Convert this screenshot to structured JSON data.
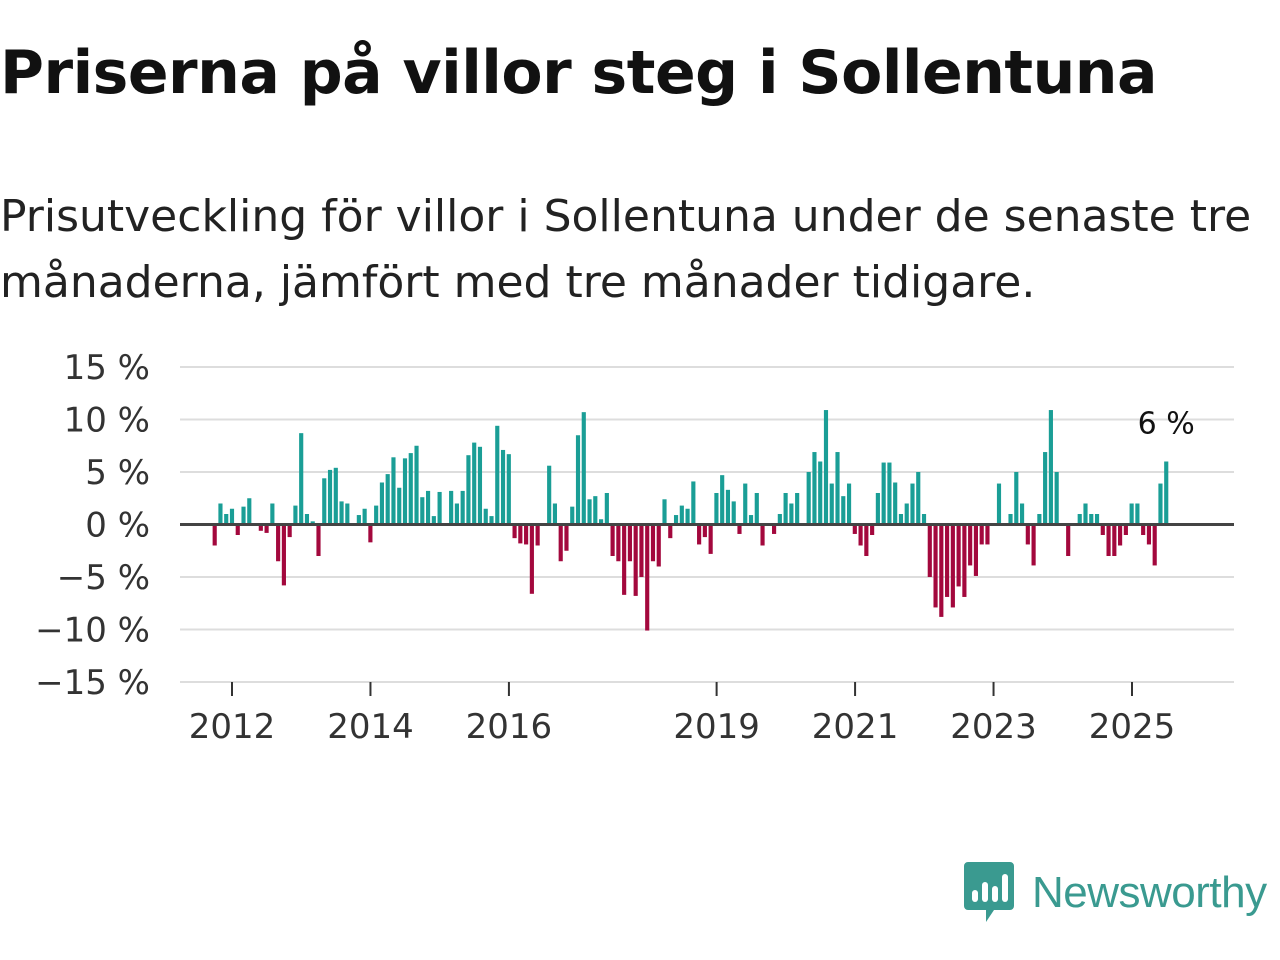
{
  "title": "Priserna på villor steg i Sollentuna",
  "subtitle": "Prisutveckling för villor i Sollentuna under de senaste tre månaderna, jämfört med tre månader tidigare.",
  "brand": "Newsworthy",
  "colors": {
    "positive": "#1a9e96",
    "negative": "#a3083d",
    "grid": "#dddddd",
    "zero_line": "#444444",
    "brand": "#3a9a90"
  },
  "chart_data": {
    "type": "bar",
    "title": "Priserna på villor steg i Sollentuna",
    "ylabel": "",
    "xlabel": "",
    "ylim": [
      -15,
      15
    ],
    "yticks": [
      15,
      10,
      5,
      0,
      -5,
      -10,
      -15
    ],
    "ytick_labels": [
      "15 %",
      "10 %",
      "5 %",
      "0 %",
      "−5 %",
      "−10 %",
      "−15 %"
    ],
    "x_start": 2011.75,
    "x_step": 0.0833,
    "xticks": [
      2012,
      2014,
      2016,
      2019,
      2021,
      2023,
      2025
    ],
    "xtick_labels": [
      "2012",
      "2014",
      "2016",
      "2019",
      "2021",
      "2023",
      "2025"
    ],
    "last_value_label": "6 %",
    "values": [
      -2,
      2,
      1,
      1.5,
      -1,
      1.7,
      2.5,
      0,
      -0.6,
      -0.8,
      2,
      -3.5,
      -5.8,
      -1.2,
      1.8,
      8.7,
      1,
      0.3,
      -3,
      4.4,
      5.2,
      5.4,
      2.2,
      2,
      0,
      0.9,
      1.5,
      -1.7,
      1.8,
      4,
      4.8,
      6.4,
      3.5,
      6.3,
      6.8,
      7.5,
      2.6,
      3.2,
      0.8,
      3.1,
      0,
      3.2,
      2,
      3.2,
      6.6,
      7.8,
      7.4,
      1.5,
      0.8,
      9.4,
      7.1,
      6.7,
      -1.3,
      -1.8,
      -1.9,
      -6.6,
      -2,
      0,
      5.6,
      2,
      -3.5,
      -2.5,
      1.7,
      8.5,
      10.7,
      2.4,
      2.7,
      0.5,
      3,
      -3,
      -3.5,
      -6.7,
      -3.5,
      -6.8,
      -5,
      -10.1,
      -3.5,
      -4,
      2.4,
      -1.3,
      0.9,
      1.8,
      1.5,
      4.1,
      -1.9,
      -1.2,
      -2.8,
      3,
      4.7,
      3.3,
      2.2,
      -0.9,
      3.9,
      0.9,
      3,
      -2,
      0,
      -0.9,
      1,
      3,
      2,
      3,
      0,
      5,
      6.9,
      6,
      10.9,
      3.9,
      6.9,
      2.7,
      3.9,
      -0.9,
      -2,
      -3,
      -1,
      3,
      5.9,
      5.9,
      4,
      1,
      2,
      3.9,
      5,
      1,
      -5,
      -7.9,
      -8.8,
      -6.9,
      -7.9,
      -5.9,
      -6.9,
      -3.9,
      -4.9,
      -1.9,
      -1.9,
      0,
      3.9,
      0,
      1,
      5,
      2,
      -1.9,
      -3.9,
      1,
      6.9,
      10.9,
      5,
      0,
      -3,
      0,
      1,
      2,
      1,
      1,
      -1,
      -3,
      -3,
      -2,
      -1,
      2,
      2,
      -1,
      -1.9,
      -3.9,
      3.9,
      6
    ]
  }
}
